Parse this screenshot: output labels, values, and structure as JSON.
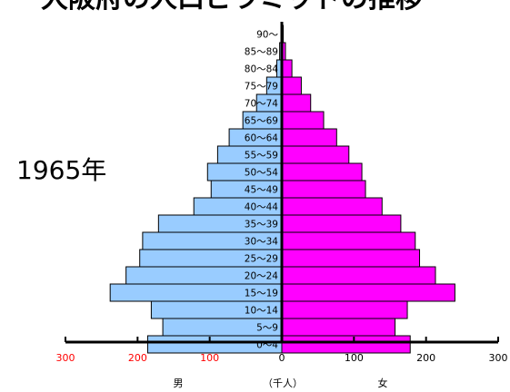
{
  "chart_data": {
    "type": "bar",
    "title": "大阪府の人口ピラミッドの推移",
    "annotation": "1965年",
    "categories": [
      "0～4",
      "5～9",
      "10～14",
      "15～19",
      "20～24",
      "25～29",
      "30～34",
      "35～39",
      "40～44",
      "45～49",
      "50～54",
      "55～59",
      "60～64",
      "65～69",
      "70～74",
      "75～79",
      "80～84",
      "85～89",
      "90～"
    ],
    "series": [
      {
        "name": "男",
        "values": [
          186,
          165,
          181,
          238,
          216,
          197,
          193,
          171,
          122,
          98,
          103,
          89,
          73,
          54,
          35,
          21,
          7,
          3,
          1
        ]
      },
      {
        "name": "女",
        "values": [
          178,
          157,
          174,
          240,
          213,
          191,
          185,
          165,
          139,
          116,
          111,
          93,
          76,
          58,
          40,
          27,
          14,
          5,
          2
        ]
      }
    ],
    "xlim": [
      -300,
      300
    ],
    "xticks": [
      {
        "value": -300,
        "label": "300"
      },
      {
        "value": -200,
        "label": "200"
      },
      {
        "value": -100,
        "label": "100"
      },
      {
        "value": 0,
        "label": "0"
      },
      {
        "value": 100,
        "label": "100"
      },
      {
        "value": 200,
        "label": "200"
      },
      {
        "value": 300,
        "label": "300"
      }
    ],
    "xlabel": "（千人）",
    "left_label": "男",
    "right_label": "女",
    "grid": false,
    "colors": {
      "male": "#99ccff",
      "female": "#ff00ff",
      "axis": "#000000",
      "left_ticks": "#ff0000",
      "right_ticks": "#000000"
    }
  }
}
